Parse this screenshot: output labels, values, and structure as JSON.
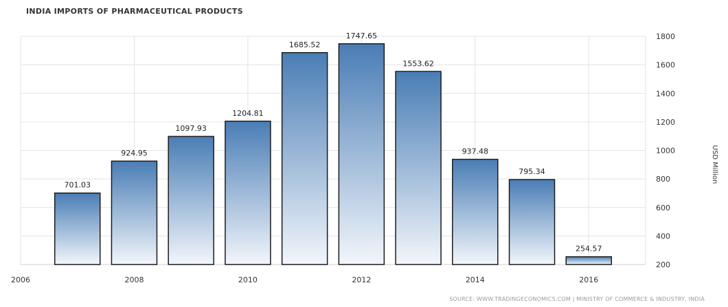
{
  "chart_data": {
    "type": "bar",
    "title": "INDIA IMPORTS OF PHARMACEUTICAL PRODUCTS",
    "ylabel": "USD Million",
    "source": "SOURCE: WWW.TRADINGECONOMICS.COM | MINISTRY OF COMMERCE & INDUSTRY, INDIA",
    "x": [
      2007,
      2008,
      2009,
      2010,
      2011,
      2012,
      2013,
      2014,
      2015,
      2016
    ],
    "values": [
      701.03,
      924.95,
      1097.93,
      1204.81,
      1685.52,
      1747.65,
      1553.62,
      937.48,
      795.34,
      254.57
    ],
    "value_labels": [
      "701.03",
      "924.95",
      "1097.93",
      "1204.81",
      "1685.52",
      "1747.65",
      "1553.62",
      "937.48",
      "795.34",
      "254.57"
    ],
    "xlim": [
      2006,
      2017
    ],
    "ylim": [
      200,
      1800
    ],
    "x_ticks": [
      "2006",
      "2008",
      "2010",
      "2012",
      "2014",
      "2016"
    ],
    "y_ticks": [
      "200",
      "400",
      "600",
      "800",
      "1000",
      "1200",
      "1400",
      "1600",
      "1800"
    ],
    "y_axis_position": "right",
    "grid": true,
    "bar_color_top": "#4a7db5",
    "bar_color_bottom": "#f2f6fb",
    "bar_border": "#1a1a1a"
  }
}
